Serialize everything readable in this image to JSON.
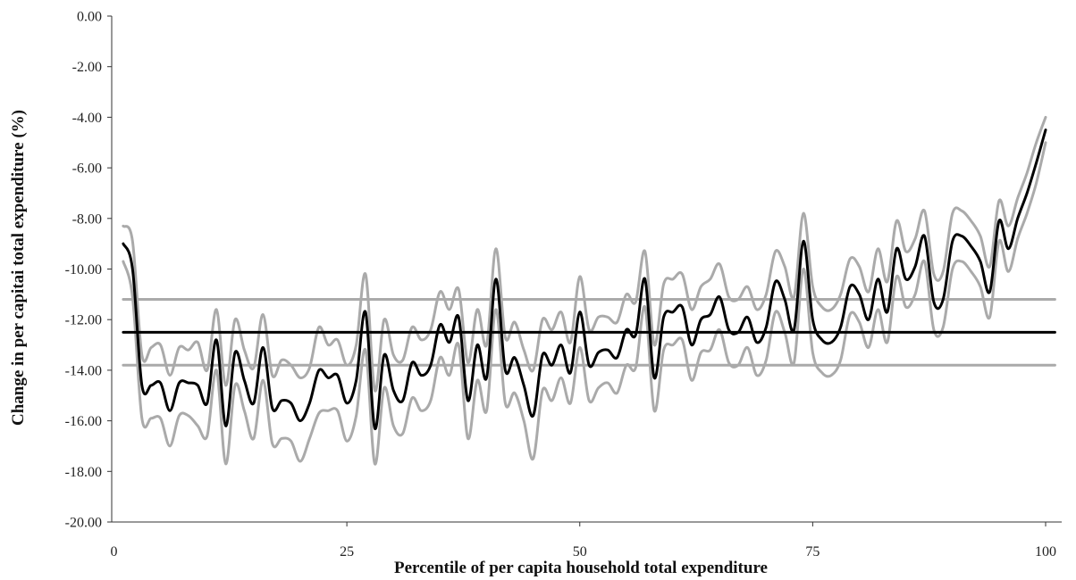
{
  "chart_data": {
    "type": "line",
    "title": "",
    "xlabel": "Percentile of per capita household total expenditure",
    "ylabel": "Change in per capitai total expenditure (%)",
    "xlim": [
      0,
      101
    ],
    "ylim": [
      -20,
      0
    ],
    "xticks": [
      {
        "value": 0,
        "label": "0"
      },
      {
        "value": 25,
        "label": "25"
      },
      {
        "value": 50,
        "label": "50"
      },
      {
        "value": 75,
        "label": "75"
      },
      {
        "value": 100,
        "label": "100"
      }
    ],
    "yticks": [
      {
        "value": 0,
        "label": "0.00"
      },
      {
        "value": -2,
        "label": "-2.00"
      },
      {
        "value": -4,
        "label": "-4.00"
      },
      {
        "value": -6,
        "label": "-6.00"
      },
      {
        "value": -8,
        "label": "-8.00"
      },
      {
        "value": -10,
        "label": "-10.00"
      },
      {
        "value": -12,
        "label": "-12.00"
      },
      {
        "value": -14,
        "label": "-14.00"
      },
      {
        "value": -16,
        "label": "-16.00"
      },
      {
        "value": -18,
        "label": "-18.00"
      },
      {
        "value": -20,
        "label": "-20.00"
      }
    ],
    "grid": false,
    "legend": "none",
    "colors": {
      "estimate": "#000000",
      "confidence": "#aaaaaa"
    },
    "series": [
      {
        "role": "estimate",
        "x": [
          1,
          2,
          3,
          4,
          5,
          6,
          7,
          8,
          9,
          10,
          11,
          12,
          13,
          14,
          15,
          16,
          17,
          18,
          19,
          20,
          21,
          22,
          23,
          24,
          25,
          26,
          27,
          28,
          29,
          30,
          31,
          32,
          33,
          34,
          35,
          36,
          37,
          38,
          39,
          40,
          41,
          42,
          43,
          44,
          45,
          46,
          47,
          48,
          49,
          50,
          51,
          52,
          53,
          54,
          55,
          56,
          57,
          58,
          59,
          60,
          61,
          62,
          63,
          64,
          65,
          66,
          67,
          68,
          69,
          70,
          71,
          72,
          73,
          74,
          75,
          76,
          77,
          78,
          79,
          80,
          81,
          82,
          83,
          84,
          85,
          86,
          87,
          88,
          89,
          90,
          91,
          92,
          93,
          94,
          95,
          96,
          97,
          98,
          99,
          100
        ],
        "y": [
          -9.0,
          -10.0,
          -14.6,
          -14.6,
          -14.5,
          -15.6,
          -14.5,
          -14.5,
          -14.6,
          -15.3,
          -12.8,
          -16.2,
          -13.3,
          -14.4,
          -15.3,
          -13.1,
          -15.5,
          -15.2,
          -15.3,
          -16.0,
          -15.3,
          -14.0,
          -14.3,
          -14.2,
          -15.3,
          -14.4,
          -11.7,
          -16.3,
          -13.4,
          -14.8,
          -15.2,
          -13.7,
          -14.2,
          -13.8,
          -12.2,
          -12.9,
          -11.9,
          -15.2,
          -13.0,
          -14.3,
          -10.4,
          -14.0,
          -13.5,
          -14.6,
          -15.8,
          -13.4,
          -13.8,
          -13.0,
          -14.1,
          -11.7,
          -13.8,
          -13.3,
          -13.2,
          -13.5,
          -12.4,
          -12.6,
          -10.4,
          -14.3,
          -11.9,
          -11.7,
          -11.5,
          -13.0,
          -12.0,
          -11.8,
          -11.1,
          -12.4,
          -12.5,
          -11.9,
          -12.9,
          -12.3,
          -10.5,
          -11.2,
          -12.4,
          -8.9,
          -12.0,
          -12.8,
          -12.9,
          -12.3,
          -10.7,
          -11.0,
          -12.0,
          -10.4,
          -11.7,
          -9.2,
          -10.4,
          -9.9,
          -8.7,
          -11.3,
          -11.2,
          -8.9,
          -8.7,
          -9.1,
          -9.7,
          -10.9,
          -8.1,
          -9.2,
          -8.0,
          -7.0,
          -5.8,
          -4.5
        ]
      },
      {
        "role": "upper",
        "x": [
          1,
          2,
          3,
          4,
          5,
          6,
          7,
          8,
          9,
          10,
          11,
          12,
          13,
          14,
          15,
          16,
          17,
          18,
          19,
          20,
          21,
          22,
          23,
          24,
          25,
          26,
          27,
          28,
          29,
          30,
          31,
          32,
          33,
          34,
          35,
          36,
          37,
          38,
          39,
          40,
          41,
          42,
          43,
          44,
          45,
          46,
          47,
          48,
          49,
          50,
          51,
          52,
          53,
          54,
          55,
          56,
          57,
          58,
          59,
          60,
          61,
          62,
          63,
          64,
          65,
          66,
          67,
          68,
          69,
          70,
          71,
          72,
          73,
          74,
          75,
          76,
          77,
          78,
          79,
          80,
          81,
          82,
          83,
          84,
          85,
          86,
          87,
          88,
          89,
          90,
          91,
          92,
          93,
          94,
          95,
          96,
          97,
          98,
          99,
          100
        ],
        "y": [
          -8.3,
          -8.9,
          -13.4,
          -13.1,
          -13.0,
          -14.2,
          -13.1,
          -13.2,
          -12.9,
          -14.0,
          -11.6,
          -14.6,
          -12.0,
          -13.2,
          -13.9,
          -11.8,
          -14.2,
          -13.6,
          -13.8,
          -14.3,
          -13.9,
          -12.3,
          -13.0,
          -12.8,
          -13.8,
          -13.0,
          -10.2,
          -14.8,
          -12.0,
          -13.4,
          -13.6,
          -12.3,
          -12.8,
          -12.4,
          -10.9,
          -11.6,
          -10.8,
          -13.7,
          -11.6,
          -13.0,
          -9.2,
          -12.7,
          -12.1,
          -13.2,
          -14.0,
          -12.0,
          -12.4,
          -11.7,
          -12.9,
          -10.3,
          -12.4,
          -11.9,
          -11.9,
          -12.1,
          -11.0,
          -11.3,
          -9.3,
          -13.0,
          -10.6,
          -10.4,
          -10.2,
          -11.6,
          -10.7,
          -10.4,
          -9.8,
          -11.1,
          -11.2,
          -10.7,
          -11.6,
          -11.0,
          -9.3,
          -9.9,
          -11.1,
          -7.8,
          -10.7,
          -11.5,
          -11.6,
          -11.0,
          -9.6,
          -9.9,
          -10.9,
          -9.2,
          -10.5,
          -8.1,
          -9.3,
          -8.8,
          -7.7,
          -10.2,
          -10.1,
          -7.8,
          -7.7,
          -8.1,
          -8.7,
          -9.9,
          -7.3,
          -8.3,
          -7.2,
          -6.2,
          -5.0,
          -4.0
        ]
      },
      {
        "role": "lower",
        "x": [
          1,
          2,
          3,
          4,
          5,
          6,
          7,
          8,
          9,
          10,
          11,
          12,
          13,
          14,
          15,
          16,
          17,
          18,
          19,
          20,
          21,
          22,
          23,
          24,
          25,
          26,
          27,
          28,
          29,
          30,
          31,
          32,
          33,
          34,
          35,
          36,
          37,
          38,
          39,
          40,
          41,
          42,
          43,
          44,
          45,
          46,
          47,
          48,
          49,
          50,
          51,
          52,
          53,
          54,
          55,
          56,
          57,
          58,
          59,
          60,
          61,
          62,
          63,
          64,
          65,
          66,
          67,
          68,
          69,
          70,
          71,
          72,
          73,
          74,
          75,
          76,
          77,
          78,
          79,
          80,
          81,
          82,
          83,
          84,
          85,
          86,
          87,
          88,
          89,
          90,
          91,
          92,
          93,
          94,
          95,
          96,
          97,
          98,
          99,
          100
        ],
        "y": [
          -9.7,
          -11.1,
          -15.9,
          -15.9,
          -15.9,
          -17.0,
          -15.8,
          -15.8,
          -16.2,
          -16.6,
          -14.0,
          -17.7,
          -14.6,
          -15.6,
          -16.7,
          -14.4,
          -16.9,
          -16.7,
          -16.8,
          -17.6,
          -16.7,
          -15.7,
          -15.6,
          -15.6,
          -16.8,
          -15.8,
          -13.2,
          -17.7,
          -14.7,
          -16.2,
          -16.5,
          -15.1,
          -15.6,
          -15.2,
          -13.5,
          -14.2,
          -13.0,
          -16.7,
          -14.4,
          -15.6,
          -11.6,
          -15.3,
          -14.9,
          -16.0,
          -17.5,
          -14.8,
          -15.2,
          -14.3,
          -15.3,
          -13.1,
          -15.2,
          -14.7,
          -14.5,
          -14.9,
          -13.8,
          -13.9,
          -11.5,
          -15.6,
          -13.2,
          -13.0,
          -12.8,
          -14.4,
          -13.3,
          -13.2,
          -12.4,
          -13.7,
          -13.8,
          -13.1,
          -14.2,
          -13.6,
          -11.7,
          -12.5,
          -13.7,
          -10.0,
          -13.3,
          -14.1,
          -14.2,
          -13.6,
          -11.8,
          -12.1,
          -13.1,
          -11.6,
          -12.9,
          -10.3,
          -11.5,
          -11.0,
          -9.7,
          -12.4,
          -12.3,
          -10.0,
          -9.7,
          -10.1,
          -10.7,
          -11.9,
          -8.9,
          -10.1,
          -8.8,
          -7.8,
          -6.6,
          -5.0
        ]
      },
      {
        "role": "mean",
        "x": [
          1,
          101
        ],
        "y": [
          -12.5,
          -12.5
        ]
      },
      {
        "role": "mean-upper",
        "x": [
          1,
          101
        ],
        "y": [
          -11.2,
          -11.2
        ]
      },
      {
        "role": "mean-lower",
        "x": [
          1,
          101
        ],
        "y": [
          -13.8,
          -13.8
        ]
      }
    ]
  }
}
